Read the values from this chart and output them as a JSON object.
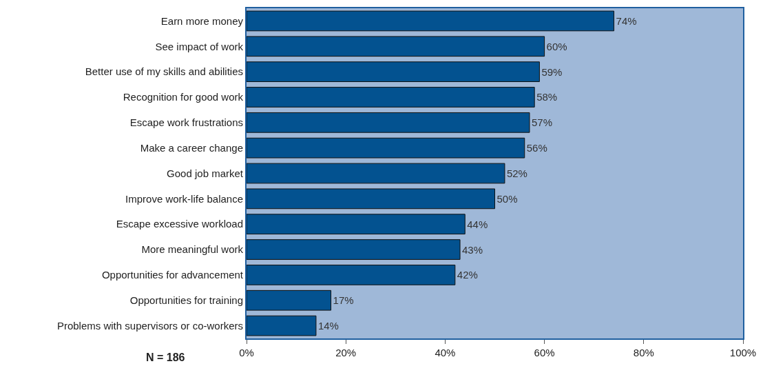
{
  "chart_data": {
    "type": "bar",
    "orientation": "horizontal",
    "categories": [
      "Earn more money",
      "See impact of work",
      "Better use of my skills and abilities",
      "Recognition for good work",
      "Escape work frustrations",
      "Make a career change",
      "Good job market",
      "Improve work-life balance",
      "Escape excessive workload",
      "More meaningful work",
      "Opportunities for advancement",
      "Opportunities for training",
      "Problems with supervisors or co-workers"
    ],
    "values": [
      74,
      60,
      59,
      58,
      57,
      56,
      52,
      50,
      44,
      43,
      42,
      17,
      14
    ],
    "value_labels": [
      "74%",
      "60%",
      "59%",
      "58%",
      "57%",
      "56%",
      "52%",
      "50%",
      "44%",
      "43%",
      "42%",
      "17%",
      "14%"
    ],
    "color": "#035290",
    "xlim": [
      0,
      100
    ],
    "xticks": [
      {
        "value": 0,
        "label": "0%"
      },
      {
        "value": 20,
        "label": "20%"
      },
      {
        "value": 40,
        "label": "40%"
      },
      {
        "value": 60,
        "label": "60%"
      },
      {
        "value": 80,
        "label": "80%"
      },
      {
        "value": 100,
        "label": "100%"
      }
    ],
    "grid": false,
    "legend": false,
    "annotations": [
      "N = 186"
    ]
  }
}
